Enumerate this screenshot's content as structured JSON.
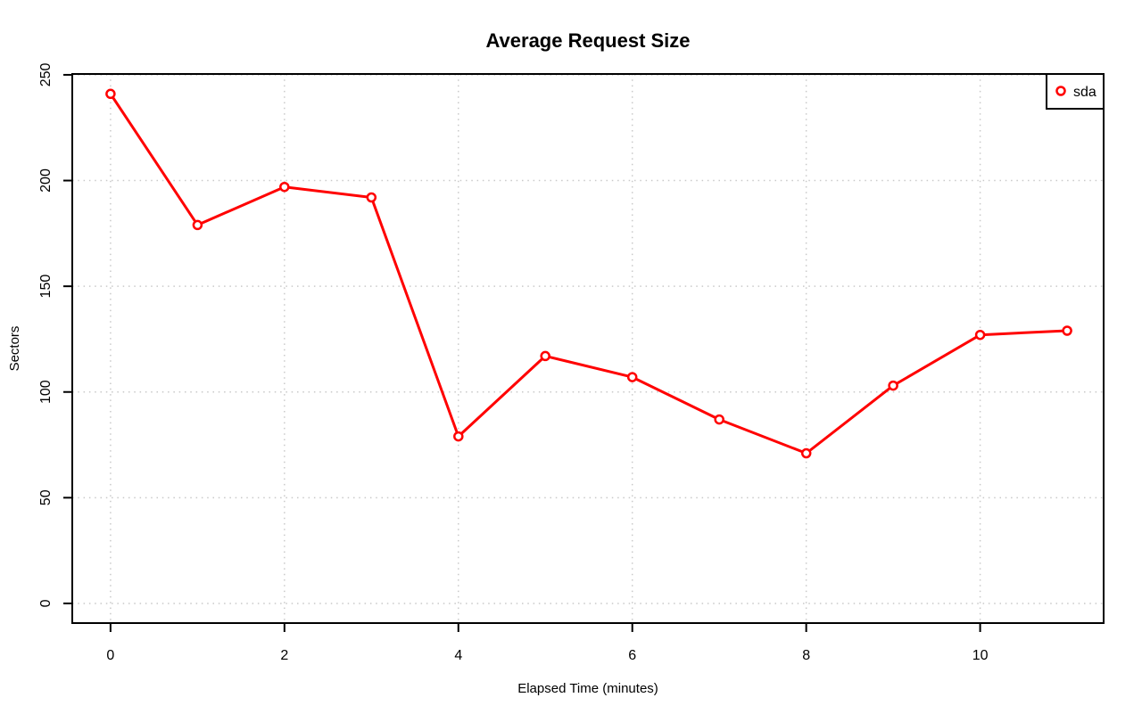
{
  "chart_data": {
    "type": "line",
    "title": "Average Request Size",
    "xlabel": "Elapsed Time (minutes)",
    "ylabel": "Sectors",
    "x": [
      0,
      1,
      2,
      3,
      4,
      5,
      6,
      7,
      8,
      9,
      10,
      11
    ],
    "series": [
      {
        "name": "sda",
        "color": "#ff0000",
        "marker": "circle-open",
        "values": [
          241,
          179,
          197,
          192,
          79,
          117,
          107,
          87,
          71,
          103,
          127,
          129
        ]
      }
    ],
    "xticks": [
      0,
      2,
      4,
      6,
      8,
      10
    ],
    "yticks": [
      0,
      50,
      100,
      150,
      200,
      250
    ],
    "xlim": [
      -0.44,
      11.42
    ],
    "ylim": [
      -9.3,
      250.4
    ],
    "grid": "dotted",
    "grid_color": "#c9c9c9",
    "frame_color": "#000000",
    "background_color": "#ffffff",
    "legend_position": "top-right"
  }
}
